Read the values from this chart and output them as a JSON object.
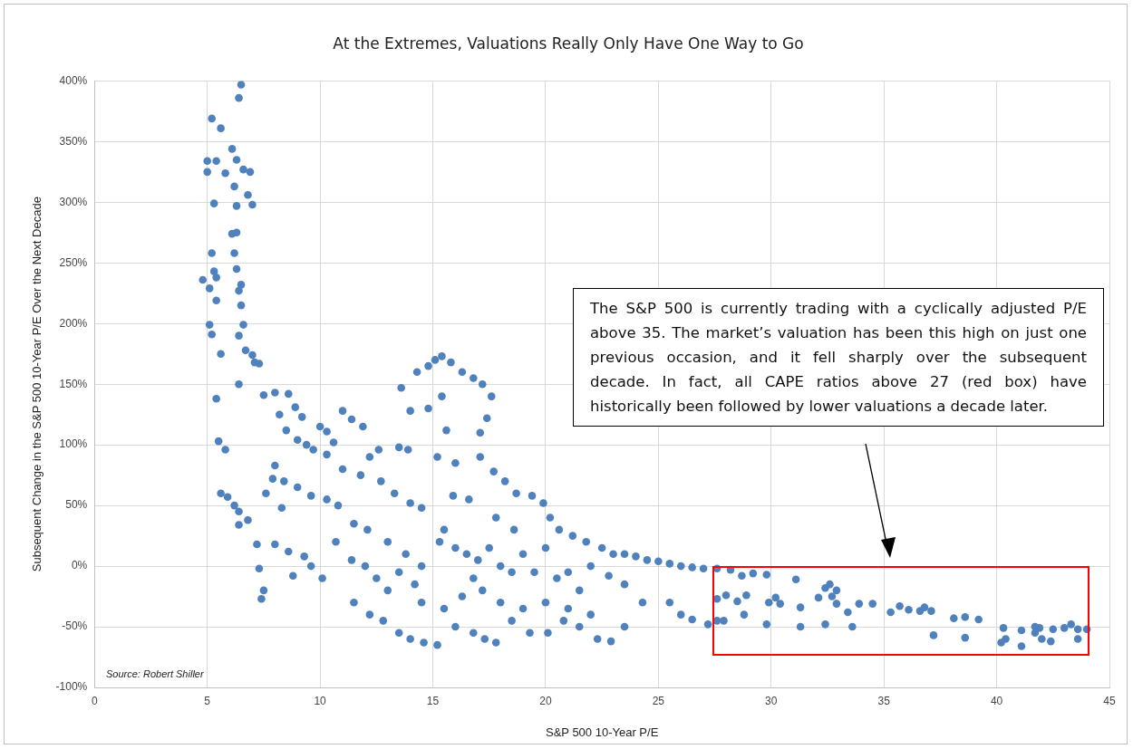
{
  "chart_data": {
    "type": "scatter",
    "title": "At the Extremes, Valuations Really Only Have One Way to Go",
    "xlabel": "S&P 500 10-Year P/E",
    "ylabel": "Subsequent Change in the S&P 500 10-Year P/E Over the Next Decade",
    "xlim": [
      0,
      45
    ],
    "xticks": [
      0,
      5,
      10,
      15,
      20,
      25,
      30,
      35,
      40,
      45
    ],
    "ylim": [
      -100,
      400
    ],
    "yticks": [
      {
        "value": -100,
        "label": "-100%"
      },
      {
        "value": -50,
        "label": "-50%"
      },
      {
        "value": 0,
        "label": "0%"
      },
      {
        "value": 50,
        "label": "50%"
      },
      {
        "value": 100,
        "label": "100%"
      },
      {
        "value": 150,
        "label": "150%"
      },
      {
        "value": 200,
        "label": "200%"
      },
      {
        "value": 250,
        "label": "250%"
      },
      {
        "value": 300,
        "label": "300%"
      },
      {
        "value": 350,
        "label": "350%"
      },
      {
        "value": 400,
        "label": "400%"
      }
    ],
    "grid": true,
    "legend": false,
    "marker": "circle",
    "annotations": [
      "The S&P 500 is currently trading with a cyclically adjusted P/E above 35.  The market’s valuation has been this high on just one previous occasion, and it fell sharply over the subsequent decade.  In fact, all CAPE ratios above 27 (red box) have historically been followed by lower valuations a decade later.",
      "Source: Robert Shiller"
    ],
    "series": [
      {
        "color": "#4f81bd",
        "x": [
          6.5,
          6.4,
          5.2,
          5.6,
          6.1,
          5.0,
          5.4,
          6.3,
          6.6,
          6.9,
          5.0,
          5.8,
          6.2,
          6.8,
          5.3,
          6.3,
          7.0,
          6.1,
          6.3,
          5.2,
          6.2,
          6.3,
          5.3,
          5.4,
          4.8,
          5.1,
          6.5,
          6.4,
          5.4,
          6.5,
          5.1,
          6.6,
          5.2,
          6.4,
          6.7,
          7.0,
          7.3,
          5.6,
          7.1,
          5.4,
          6.4,
          5.5,
          5.8,
          5.6,
          5.9,
          6.2,
          6.4,
          6.8,
          6.4,
          7.2,
          7.3,
          7.5,
          7.4,
          7.5,
          8.0,
          8.6,
          8.2,
          8.9,
          9.2,
          8.5,
          9.0,
          9.4,
          9.7,
          10.0,
          10.3,
          10.6,
          11.0,
          11.4,
          11.9,
          12.2,
          12.6,
          10.3,
          8.0,
          7.9,
          8.4,
          9.0,
          9.6,
          10.3,
          10.8,
          11.0,
          11.8,
          12.7,
          13.3,
          14.0,
          14.5,
          7.6,
          8.3,
          8.0,
          8.6,
          9.3,
          9.6,
          10.1,
          8.8,
          10.7,
          11.4,
          12.0,
          12.5,
          11.5,
          12.1,
          13.0,
          13.8,
          14.5,
          15.3,
          15.5,
          16.0,
          16.5,
          17.0,
          17.5,
          18.0,
          18.5,
          19.0,
          19.5,
          20.0,
          20.5,
          21.0,
          21.5,
          22.0,
          22.5,
          23.0,
          23.5,
          24.0,
          24.5,
          25.0,
          25.5,
          26.0,
          26.5,
          27.0,
          22.8,
          23.5,
          24.3,
          25.5,
          26.0,
          26.5,
          27.2,
          11.5,
          12.2,
          12.8,
          13.5,
          14.0,
          14.6,
          15.2,
          16.0,
          16.8,
          17.3,
          17.8,
          18.5,
          19.3,
          20.1,
          20.8,
          21.5,
          22.3,
          22.9,
          23.5,
          14.5,
          15.5,
          16.3,
          17.2,
          18.0,
          19.0,
          20.0,
          21.0,
          22.0,
          13.0,
          13.5,
          14.2,
          16.8,
          13.6,
          14.3,
          14.8,
          15.1,
          15.4,
          15.8,
          16.3,
          16.8,
          17.2,
          17.6,
          17.4,
          17.1,
          15.4,
          15.6,
          14.8,
          14.0,
          15.2,
          16.0,
          17.1,
          17.7,
          18.2,
          18.7,
          19.4,
          19.9,
          20.2,
          20.6,
          21.2,
          21.8,
          13.5,
          13.9,
          15.9,
          16.6,
          17.8,
          18.6,
          27.6,
          28.2,
          28.7,
          29.2,
          29.8,
          31.1,
          27.6,
          28.0,
          28.5,
          28.9,
          28.8,
          27.6,
          27.9,
          29.9,
          30.2,
          30.4,
          29.8,
          31.3,
          31.3,
          32.1,
          32.4,
          32.6,
          32.9,
          32.7,
          32.9,
          32.4,
          33.4,
          33.6,
          33.9,
          34.5,
          35.3,
          35.7,
          36.1,
          36.6,
          36.8,
          37.1,
          37.2,
          38.1,
          38.6,
          39.2,
          38.6,
          40.3,
          40.2,
          40.4,
          41.1,
          41.1,
          41.7,
          41.9,
          41.7,
          42.0,
          42.4,
          42.5,
          43.0,
          43.3,
          43.6,
          44.0,
          43.6
        ],
        "values": [
          397,
          386,
          369,
          361,
          344,
          334,
          334,
          335,
          327,
          325,
          325,
          324,
          313,
          306,
          299,
          297,
          298,
          274,
          275,
          258,
          258,
          245,
          243,
          238,
          236,
          229,
          232,
          227,
          219,
          215,
          199,
          199,
          191,
          190,
          178,
          174,
          167,
          175,
          168,
          138,
          150,
          103,
          96,
          60,
          57,
          50,
          45,
          38,
          34,
          18,
          -2,
          -20,
          -27,
          141,
          143,
          142,
          125,
          131,
          123,
          112,
          104,
          100,
          96,
          115,
          111,
          102,
          128,
          121,
          115,
          90,
          96,
          92,
          83,
          72,
          70,
          65,
          58,
          55,
          50,
          80,
          75,
          70,
          60,
          52,
          48,
          60,
          48,
          18,
          12,
          8,
          0,
          -10,
          -8,
          20,
          5,
          0,
          -10,
          35,
          30,
          20,
          10,
          0,
          20,
          30,
          15,
          10,
          5,
          15,
          0,
          -5,
          10,
          -5,
          15,
          -10,
          -5,
          -20,
          0,
          15,
          10,
          10,
          8,
          5,
          4,
          2,
          0,
          -1,
          -2,
          -8,
          -15,
          -30,
          -30,
          -40,
          -44,
          -48,
          -30,
          -40,
          -45,
          -55,
          -60,
          -63,
          -65,
          -50,
          -55,
          -60,
          -63,
          -45,
          -55,
          -55,
          -45,
          -50,
          -60,
          -62,
          -50,
          -30,
          -35,
          -25,
          -20,
          -30,
          -35,
          -30,
          -35,
          -40,
          -20,
          -5,
          -15,
          -10,
          147,
          160,
          165,
          170,
          173,
          168,
          160,
          155,
          150,
          140,
          122,
          110,
          140,
          112,
          130,
          128,
          90,
          85,
          90,
          78,
          70,
          60,
          58,
          52,
          40,
          30,
          25,
          20,
          98,
          96,
          58,
          55,
          40,
          30,
          -2,
          -3,
          -8,
          -6,
          -7,
          -11,
          -27,
          -24,
          -29,
          -24,
          -40,
          -45,
          -45,
          -30,
          -26,
          -31,
          -48,
          -34,
          -50,
          -26,
          -18,
          -15,
          -20,
          -25,
          -31,
          -48,
          -38,
          -50,
          -31,
          -31,
          -38,
          -33,
          -36,
          -37,
          -34,
          -37,
          -57,
          -43,
          -42,
          -44,
          -59,
          -51,
          -63,
          -60,
          -53,
          -66,
          -50,
          -51,
          -55,
          -60,
          -62,
          -52,
          -51,
          -48,
          -52,
          -52,
          -60
        ]
      }
    ]
  }
}
